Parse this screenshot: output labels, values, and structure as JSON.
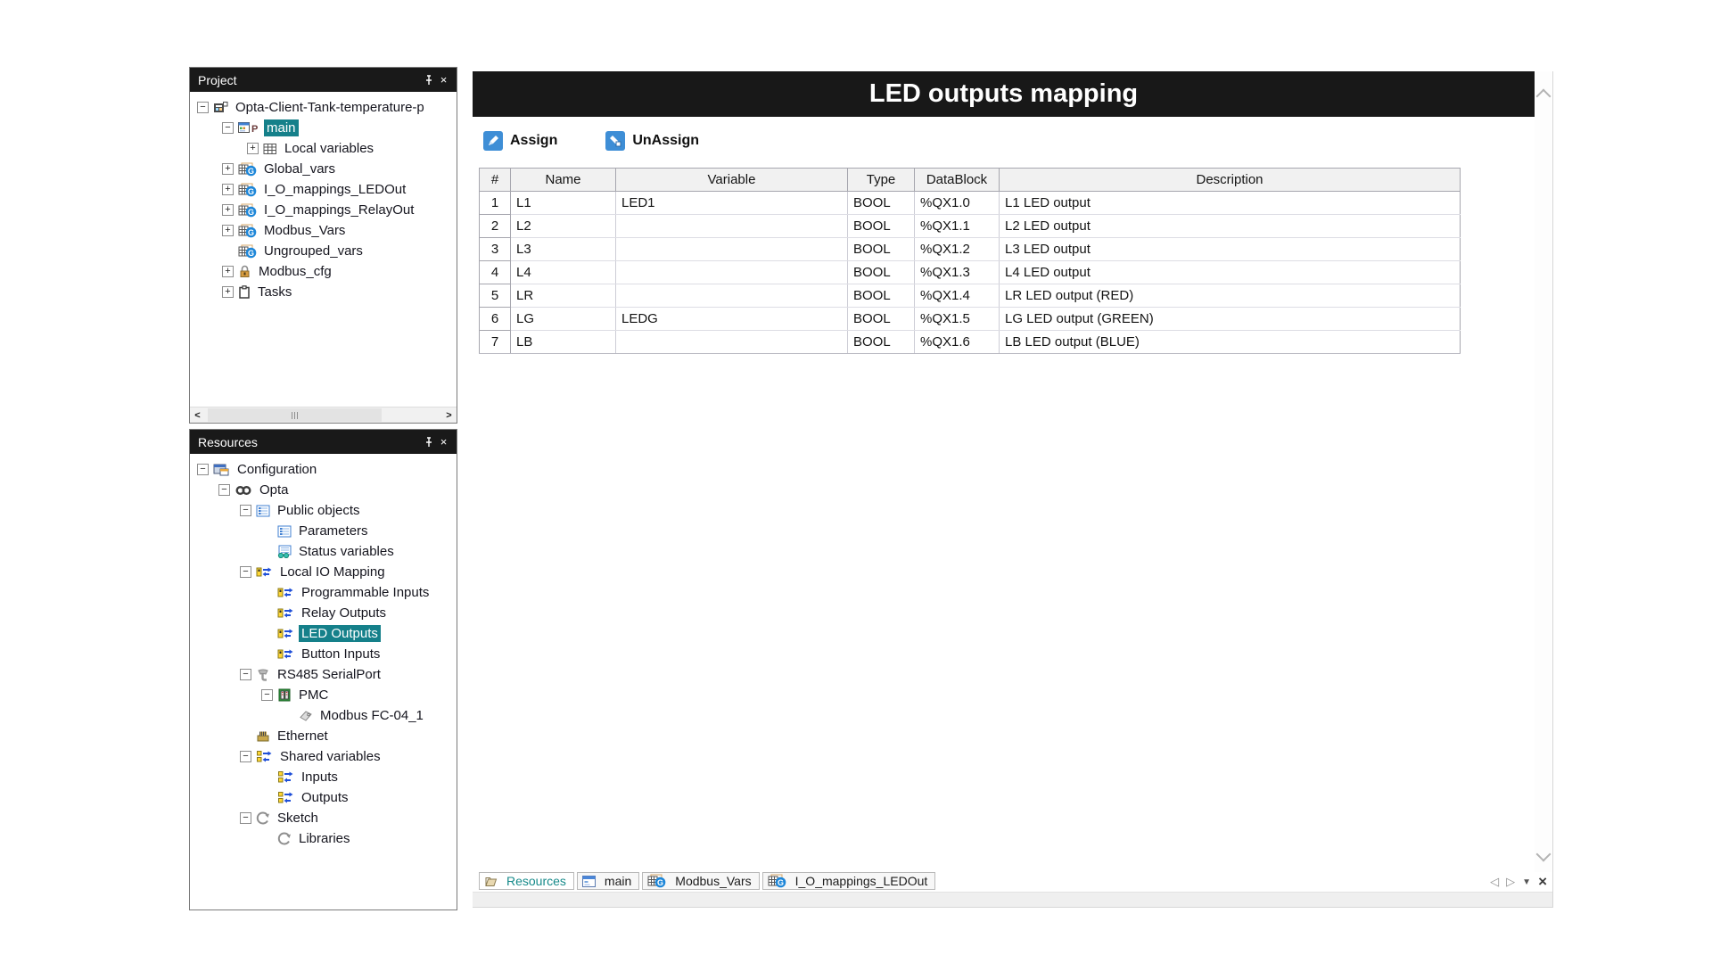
{
  "project_panel": {
    "title": "Project",
    "tree": [
      {
        "label": "Opta-Client-Tank-temperature-p",
        "depth": 0,
        "expander": "-",
        "icon": "project"
      },
      {
        "label": "main",
        "depth": 1,
        "expander": "-",
        "icon": "program",
        "selected": true
      },
      {
        "label": "Local variables",
        "depth": 2,
        "expander": "+",
        "icon": "grid"
      },
      {
        "label": "Global_vars",
        "depth": 1,
        "expander": "+",
        "icon": "grid-g"
      },
      {
        "label": "I_O_mappings_LEDOut",
        "depth": 1,
        "expander": "+",
        "icon": "grid-g"
      },
      {
        "label": "I_O_mappings_RelayOut",
        "depth": 1,
        "expander": "+",
        "icon": "grid-g"
      },
      {
        "label": "Modbus_Vars",
        "depth": 1,
        "expander": "+",
        "icon": "grid-g"
      },
      {
        "label": "Ungrouped_vars",
        "depth": 1,
        "expander": null,
        "icon": "grid-g"
      },
      {
        "label": "Modbus_cfg",
        "depth": 1,
        "expander": "+",
        "icon": "lock"
      },
      {
        "label": "Tasks",
        "depth": 1,
        "expander": "+",
        "icon": "tasks"
      }
    ]
  },
  "resources_panel": {
    "title": "Resources",
    "tree": [
      {
        "label": "Configuration",
        "depth": 0,
        "expander": "-",
        "icon": "config"
      },
      {
        "label": "Opta",
        "depth": 1,
        "expander": "-",
        "icon": "opta"
      },
      {
        "label": "Public objects",
        "depth": 2,
        "expander": "-",
        "icon": "list"
      },
      {
        "label": "Parameters",
        "depth": 3,
        "expander": null,
        "icon": "list"
      },
      {
        "label": "Status variables",
        "depth": 3,
        "expander": null,
        "icon": "status"
      },
      {
        "label": "Local IO Mapping",
        "depth": 2,
        "expander": "-",
        "icon": "iomap"
      },
      {
        "label": "Programmable Inputs",
        "depth": 3,
        "expander": null,
        "icon": "iomap"
      },
      {
        "label": "Relay Outputs",
        "depth": 3,
        "expander": null,
        "icon": "iomap"
      },
      {
        "label": "LED Outputs",
        "depth": 3,
        "expander": null,
        "icon": "iomap",
        "selected": true
      },
      {
        "label": "Button Inputs",
        "depth": 3,
        "expander": null,
        "icon": "iomap"
      },
      {
        "label": "RS485 SerialPort",
        "depth": 2,
        "expander": "-",
        "icon": "serial"
      },
      {
        "label": "PMC",
        "depth": 3,
        "expander": "-",
        "icon": "pmc"
      },
      {
        "label": "Modbus FC-04_1",
        "depth": 4,
        "expander": null,
        "icon": "modbus"
      },
      {
        "label": "Ethernet",
        "depth": 2,
        "expander": null,
        "icon": "ethernet"
      },
      {
        "label": "Shared variables",
        "depth": 2,
        "expander": "-",
        "icon": "shared"
      },
      {
        "label": "Inputs",
        "depth": 3,
        "expander": null,
        "icon": "shared"
      },
      {
        "label": "Outputs",
        "depth": 3,
        "expander": null,
        "icon": "shared"
      },
      {
        "label": "Sketch",
        "depth": 2,
        "expander": "-",
        "icon": "sketch"
      },
      {
        "label": "Libraries",
        "depth": 3,
        "expander": null,
        "icon": "sketch"
      }
    ]
  },
  "main": {
    "title": "LED outputs mapping",
    "toolbar": {
      "assign_label": "Assign",
      "unassign_label": "UnAssign"
    },
    "table": {
      "columns": [
        "#",
        "Name",
        "Variable",
        "Type",
        "DataBlock",
        "Description"
      ],
      "rows": [
        [
          "1",
          "L1",
          "LED1",
          "BOOL",
          "%QX1.0",
          "L1 LED output"
        ],
        [
          "2",
          "L2",
          "",
          "BOOL",
          "%QX1.1",
          "L2 LED output"
        ],
        [
          "3",
          "L3",
          "",
          "BOOL",
          "%QX1.2",
          "L3 LED output"
        ],
        [
          "4",
          "L4",
          "",
          "BOOL",
          "%QX1.3",
          "L4 LED output"
        ],
        [
          "5",
          "LR",
          "",
          "BOOL",
          "%QX1.4",
          "LR LED output (RED)"
        ],
        [
          "6",
          "LG",
          "LEDG",
          "BOOL",
          "%QX1.5",
          "LG LED output (GREEN)"
        ],
        [
          "7",
          "LB",
          "",
          "BOOL",
          "%QX1.6",
          "LB LED output (BLUE)"
        ]
      ]
    },
    "tabs": [
      {
        "label": "Resources",
        "icon": "tab-resources",
        "active": true
      },
      {
        "label": "main",
        "icon": "tab-main",
        "active": false
      },
      {
        "label": "Modbus_Vars",
        "icon": "grid-g",
        "active": false
      },
      {
        "label": "I_O_mappings_LEDOut",
        "icon": "grid-g",
        "active": false
      }
    ]
  },
  "glyphs": {
    "close": "×",
    "scroll_left": "<",
    "scroll_right": ">",
    "nav_prev": "◁",
    "nav_next": "▷",
    "nav_menu": "▼",
    "tabs_close": "×"
  },
  "colors": {
    "selection": "#15808a",
    "panel_header_bg": "#191919",
    "accent_blue": "#3e8ed6",
    "active_tab_text": "#168a8a"
  }
}
